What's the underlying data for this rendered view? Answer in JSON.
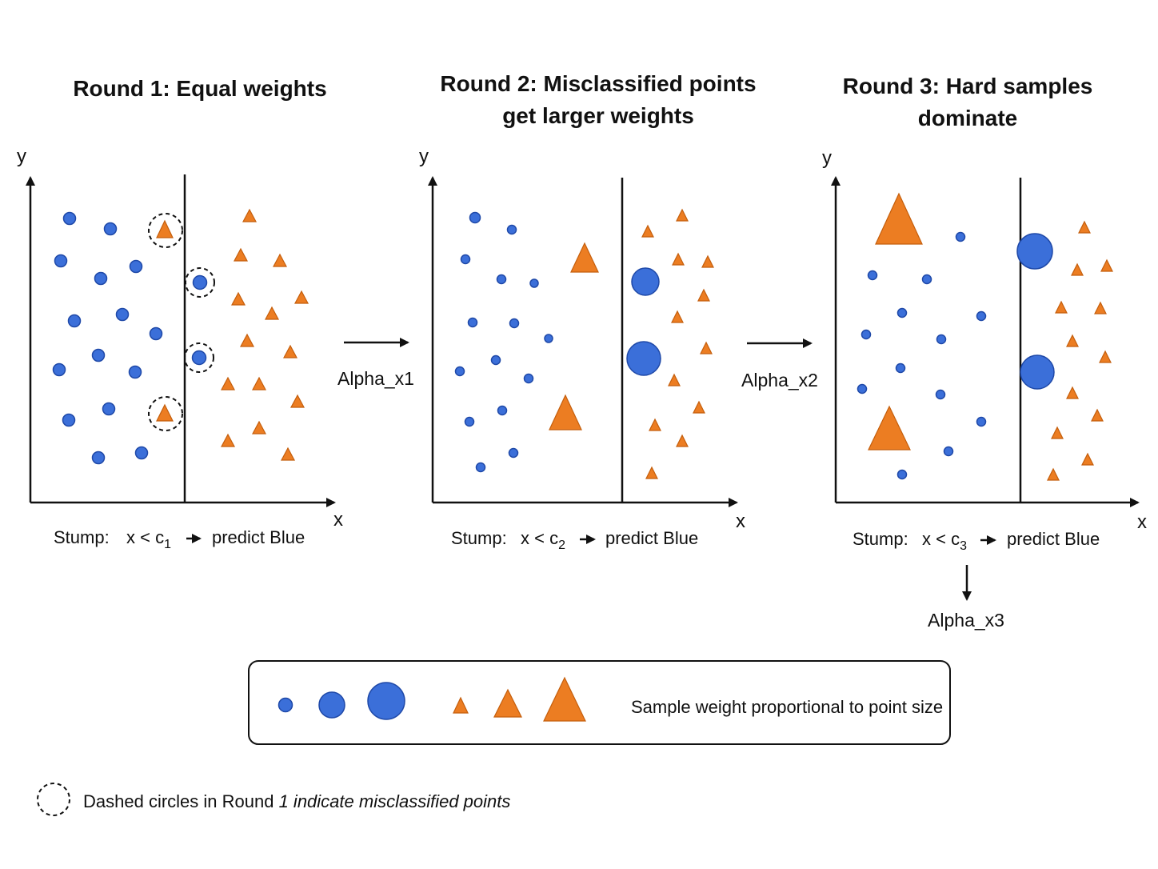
{
  "panels": [
    {
      "title_lines": [
        "Round 1: Equal weights"
      ],
      "axis_y": "y",
      "axis_x": "x",
      "stump": {
        "prefix": "Stump:",
        "expr": "x < c",
        "sub": "1",
        "result": "predict Blue"
      }
    },
    {
      "title_lines": [
        "Round 2: Misclassified points",
        "get larger weights"
      ],
      "axis_y": "y",
      "axis_x": "x",
      "stump": {
        "prefix": "Stump:",
        "expr": "x < c",
        "sub": "2",
        "result": "predict Blue"
      }
    },
    {
      "title_lines": [
        "Round 3: Hard samples",
        "dominate"
      ],
      "axis_y": "y",
      "axis_x": "x",
      "stump": {
        "prefix": "Stump:",
        "expr": "x < c",
        "sub": "3",
        "result": "predict Blue"
      }
    }
  ],
  "arrows": [
    {
      "label": "Alpha_x1"
    },
    {
      "label": "Alpha_x2"
    },
    {
      "label": "Alpha_x3"
    }
  ],
  "legend": {
    "text": "Sample weight proportional to point size"
  },
  "note": {
    "text_normal": "Dashed circles in Round ",
    "text_italic": "1 indicate misclassified points"
  },
  "colors": {
    "blue": "#3b6fd9",
    "orange": "#ec7d22"
  }
}
